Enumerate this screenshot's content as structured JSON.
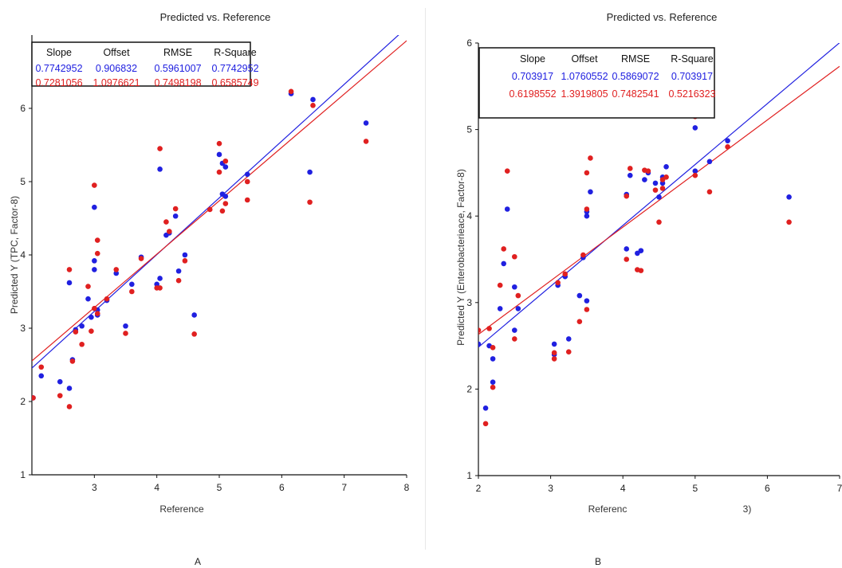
{
  "panels": [
    {
      "caption": "A",
      "title": "Predicted vs. Reference",
      "xlabel": "Reference",
      "ylabel": "Predicted Y (TPC, Factor-8)",
      "xlim": [
        2,
        8
      ],
      "ylim": [
        1,
        7
      ],
      "xticks": [
        "3",
        "4",
        "5",
        "6",
        "7",
        "8"
      ],
      "yticks": [
        "1",
        "2",
        "3",
        "4",
        "5",
        "6"
      ],
      "table": {
        "headers": [
          "Slope",
          "Offset",
          "RMSE",
          "R-Square"
        ],
        "rows": [
          {
            "color": "#2020e0",
            "values": [
              "0.7742952",
              "0.906832",
              "0.5961007",
              "0.7742952"
            ]
          },
          {
            "color": "#e02020",
            "values": [
              "0.7281056",
              "1.0976621",
              "0.7498198",
              "0.6585749"
            ]
          }
        ]
      }
    },
    {
      "caption": "B",
      "title": "Predicted vs. Reference",
      "xlabel": "Referenc",
      "xlabel_tail": "3)",
      "ylabel": "Predicted Y (Enterobacterieace, Factor-8)",
      "xlim": [
        2,
        7
      ],
      "ylim": [
        1,
        6
      ],
      "xticks": [
        "2",
        "3",
        "4",
        "5",
        "6",
        "7"
      ],
      "yticks": [
        "1",
        "2",
        "3",
        "4",
        "5",
        "6"
      ],
      "table": {
        "headers": [
          "Slope",
          "Offset",
          "RMSE",
          "R-Square"
        ],
        "rows": [
          {
            "color": "#2020e0",
            "values": [
              "0.703917",
              "1.0760552",
              "0.5869072",
              "0.703917"
            ]
          },
          {
            "color": "#e02020",
            "values": [
              "0.6198552",
              "1.3919805",
              "0.7482541",
              "0.5216323"
            ]
          }
        ]
      }
    }
  ],
  "chart_data": [
    {
      "type": "scatter",
      "title": "Predicted vs. Reference",
      "xlabel": "Reference",
      "ylabel": "Predicted Y (TPC, Factor-8)",
      "xlim": [
        2,
        8
      ],
      "ylim": [
        1,
        7
      ],
      "series": [
        {
          "color": "#2020e0",
          "slope": 0.7742952,
          "offset": 0.906832,
          "points": [
            [
              2.02,
              2.05
            ],
            [
              2.15,
              2.35
            ],
            [
              2.45,
              2.27
            ],
            [
              2.6,
              2.18
            ],
            [
              2.65,
              2.57
            ],
            [
              2.7,
              2.98
            ],
            [
              2.8,
              3.03
            ],
            [
              2.9,
              3.4
            ],
            [
              2.95,
              3.15
            ],
            [
              3.0,
              3.8
            ],
            [
              3.0,
              4.65
            ],
            [
              3.05,
              3.18
            ],
            [
              3.0,
              3.92
            ],
            [
              3.05,
              3.25
            ],
            [
              3.2,
              3.38
            ],
            [
              3.35,
              3.75
            ],
            [
              3.5,
              3.03
            ],
            [
              3.6,
              3.6
            ],
            [
              3.75,
              3.97
            ],
            [
              4.0,
              3.6
            ],
            [
              4.05,
              3.68
            ],
            [
              4.05,
              5.17
            ],
            [
              4.15,
              4.27
            ],
            [
              4.2,
              4.3
            ],
            [
              4.3,
              4.53
            ],
            [
              4.35,
              3.78
            ],
            [
              4.45,
              4.0
            ],
            [
              4.6,
              3.18
            ],
            [
              5.0,
              5.37
            ],
            [
              5.05,
              4.83
            ],
            [
              5.05,
              5.25
            ],
            [
              5.1,
              5.2
            ],
            [
              5.1,
              4.8
            ],
            [
              5.45,
              5.1
            ],
            [
              6.15,
              6.2
            ],
            [
              6.45,
              5.13
            ],
            [
              6.5,
              6.12
            ],
            [
              7.35,
              5.8
            ],
            [
              2.6,
              3.62
            ]
          ]
        },
        {
          "color": "#e02020",
          "slope": 0.7281056,
          "offset": 1.0976621,
          "points": [
            [
              2.02,
              2.05
            ],
            [
              2.15,
              2.47
            ],
            [
              2.45,
              2.08
            ],
            [
              2.6,
              1.93
            ],
            [
              2.65,
              2.55
            ],
            [
              2.7,
              2.95
            ],
            [
              2.8,
              2.78
            ],
            [
              2.9,
              3.57
            ],
            [
              2.95,
              2.96
            ],
            [
              3.0,
              3.27
            ],
            [
              3.0,
              4.95
            ],
            [
              3.05,
              4.2
            ],
            [
              3.05,
              4.02
            ],
            [
              3.05,
              3.2
            ],
            [
              3.2,
              3.4
            ],
            [
              3.35,
              3.8
            ],
            [
              3.5,
              2.93
            ],
            [
              3.6,
              3.5
            ],
            [
              3.75,
              3.95
            ],
            [
              4.0,
              3.55
            ],
            [
              4.05,
              3.55
            ],
            [
              4.05,
              5.45
            ],
            [
              4.15,
              4.45
            ],
            [
              4.2,
              4.32
            ],
            [
              4.3,
              4.63
            ],
            [
              4.35,
              3.65
            ],
            [
              4.45,
              3.92
            ],
            [
              4.6,
              2.92
            ],
            [
              4.85,
              4.62
            ],
            [
              5.0,
              5.52
            ],
            [
              5.0,
              5.13
            ],
            [
              5.05,
              4.6
            ],
            [
              5.1,
              5.28
            ],
            [
              5.1,
              4.7
            ],
            [
              5.45,
              4.75
            ],
            [
              5.45,
              5.0
            ],
            [
              6.15,
              6.23
            ],
            [
              6.45,
              4.72
            ],
            [
              6.5,
              6.04
            ],
            [
              7.35,
              5.55
            ],
            [
              2.6,
              3.8
            ]
          ]
        }
      ]
    },
    {
      "type": "scatter",
      "title": "Predicted vs. Reference",
      "xlabel": "Referenc",
      "ylabel": "Predicted Y (Enterobacterieace, Factor-8)",
      "xlim": [
        2,
        7
      ],
      "ylim": [
        1,
        6
      ],
      "series": [
        {
          "color": "#2020e0",
          "slope": 0.703917,
          "offset": 1.0760552,
          "points": [
            [
              2.0,
              2.52
            ],
            [
              2.1,
              1.78
            ],
            [
              2.15,
              2.5
            ],
            [
              2.2,
              2.35
            ],
            [
              2.2,
              2.08
            ],
            [
              2.3,
              2.93
            ],
            [
              2.35,
              3.45
            ],
            [
              2.4,
              4.08
            ],
            [
              2.5,
              2.68
            ],
            [
              2.5,
              3.18
            ],
            [
              2.55,
              2.93
            ],
            [
              3.05,
              2.52
            ],
            [
              3.05,
              2.4
            ],
            [
              3.1,
              3.2
            ],
            [
              3.2,
              3.3
            ],
            [
              3.25,
              2.58
            ],
            [
              3.4,
              3.08
            ],
            [
              3.45,
              3.52
            ],
            [
              3.5,
              4.0
            ],
            [
              3.5,
              4.05
            ],
            [
              3.5,
              3.02
            ],
            [
              3.55,
              4.28
            ],
            [
              4.05,
              3.62
            ],
            [
              4.1,
              4.47
            ],
            [
              4.2,
              3.57
            ],
            [
              4.25,
              3.6
            ],
            [
              4.3,
              4.42
            ],
            [
              4.35,
              4.5
            ],
            [
              4.45,
              4.38
            ],
            [
              4.5,
              4.22
            ],
            [
              4.55,
              4.45
            ],
            [
              4.55,
              4.38
            ],
            [
              4.6,
              4.57
            ],
            [
              5.0,
              5.02
            ],
            [
              5.0,
              4.52
            ],
            [
              5.2,
              4.63
            ],
            [
              5.45,
              4.87
            ],
            [
              6.3,
              4.22
            ],
            [
              4.05,
              4.25
            ]
          ]
        },
        {
          "color": "#e02020",
          "slope": 0.6198552,
          "offset": 1.3919805,
          "points": [
            [
              2.0,
              2.68
            ],
            [
              2.1,
              1.6
            ],
            [
              2.15,
              2.7
            ],
            [
              2.2,
              2.48
            ],
            [
              2.2,
              2.02
            ],
            [
              2.3,
              3.2
            ],
            [
              2.35,
              3.62
            ],
            [
              2.4,
              4.52
            ],
            [
              2.5,
              2.58
            ],
            [
              2.5,
              3.53
            ],
            [
              2.55,
              3.08
            ],
            [
              3.05,
              2.35
            ],
            [
              3.05,
              2.42
            ],
            [
              3.1,
              3.23
            ],
            [
              3.2,
              3.33
            ],
            [
              3.25,
              2.43
            ],
            [
              3.4,
              2.78
            ],
            [
              3.45,
              3.55
            ],
            [
              3.5,
              4.08
            ],
            [
              3.5,
              4.5
            ],
            [
              3.5,
              2.92
            ],
            [
              3.55,
              4.67
            ],
            [
              4.05,
              3.5
            ],
            [
              4.1,
              4.55
            ],
            [
              4.2,
              3.38
            ],
            [
              4.25,
              3.37
            ],
            [
              4.3,
              4.53
            ],
            [
              4.35,
              4.52
            ],
            [
              4.45,
              4.3
            ],
            [
              4.5,
              3.93
            ],
            [
              4.55,
              4.42
            ],
            [
              4.55,
              4.32
            ],
            [
              4.6,
              4.45
            ],
            [
              5.0,
              4.47
            ],
            [
              5.0,
              5.15
            ],
            [
              5.2,
              4.28
            ],
            [
              5.45,
              4.8
            ],
            [
              6.3,
              3.93
            ],
            [
              4.05,
              4.23
            ]
          ]
        }
      ]
    }
  ]
}
